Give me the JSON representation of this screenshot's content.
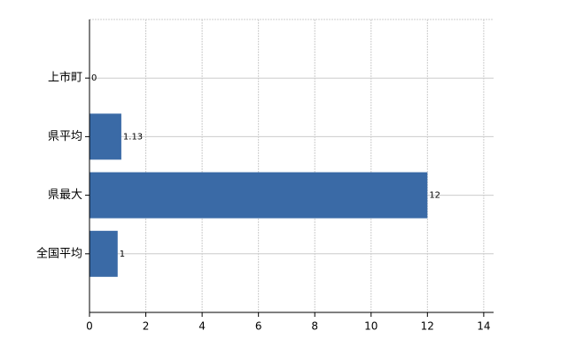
{
  "chart_data": {
    "type": "barh",
    "categories": [
      "上市町",
      "県平均",
      "県最大",
      "全国平均"
    ],
    "values": [
      0,
      1.13,
      12,
      1
    ],
    "color": "#3a6aa6",
    "xlim": [
      0,
      14.35
    ],
    "xticks": [
      0,
      2,
      4,
      6,
      8,
      10,
      12,
      14
    ],
    "grid": true
  }
}
